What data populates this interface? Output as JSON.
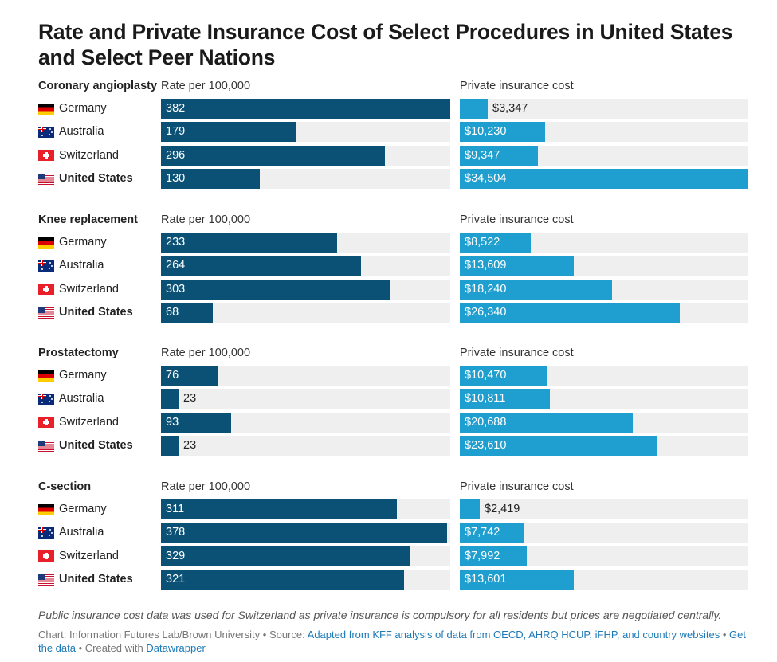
{
  "title": "Rate and Private Insurance Cost of Select Procedures in United States and Select Peer Nations",
  "column_headers": {
    "rate": "Rate per 100,000",
    "cost": "Private insurance cost"
  },
  "colors": {
    "rate_bar": "#0b5175",
    "cost_bar": "#1e9fcf",
    "track": "#efefef"
  },
  "chart_data": {
    "type": "bar",
    "orientation": "horizontal",
    "countries": [
      "Germany",
      "Australia",
      "Switzerland",
      "United States"
    ],
    "rate_axis_max": 382,
    "cost_axis_max": 34504,
    "sections": [
      {
        "procedure": "Coronary angioplasty",
        "rates": [
          382,
          179,
          296,
          130
        ],
        "rate_labels": [
          "382",
          "179",
          "296",
          "130"
        ],
        "costs": [
          3347,
          10230,
          9347,
          34504
        ],
        "cost_labels": [
          "$3,347",
          "$10,230",
          "$9,347",
          "$34,504"
        ]
      },
      {
        "procedure": "Knee replacement",
        "rates": [
          233,
          264,
          303,
          68
        ],
        "rate_labels": [
          "233",
          "264",
          "303",
          "68"
        ],
        "costs": [
          8522,
          13609,
          18240,
          26340
        ],
        "cost_labels": [
          "$8,522",
          "$13,609",
          "$18,240",
          "$26,340"
        ]
      },
      {
        "procedure": "Prostatectomy",
        "rates": [
          76,
          23,
          93,
          23
        ],
        "rate_labels": [
          "76",
          "23",
          "93",
          "23"
        ],
        "costs": [
          10470,
          10811,
          20688,
          23610
        ],
        "cost_labels": [
          "$10,470",
          "$10,811",
          "$20,688",
          "$23,610"
        ]
      },
      {
        "procedure": "C-section",
        "rates": [
          311,
          378,
          329,
          321
        ],
        "rate_labels": [
          "311",
          "378",
          "329",
          "321"
        ],
        "costs": [
          2419,
          7742,
          7992,
          13601
        ],
        "cost_labels": [
          "$2,419",
          "$7,742",
          "$7,992",
          "$13,601"
        ]
      }
    ]
  },
  "footnote": "Public insurance cost data was used for Switzerland as private insurance is compulsory for all residents but prices are negotiated centrally.",
  "credits": {
    "chart_by": "Chart: Information Futures Lab/Brown University",
    "sep1": " • Source: ",
    "source_link": "Adapted from KFF analysis of data from OECD, AHRQ HCUP, iFHP, and country websites",
    "sep2": " • ",
    "get_data": "Get the data",
    "sep3": " • Created with ",
    "datawrapper": "Datawrapper"
  }
}
